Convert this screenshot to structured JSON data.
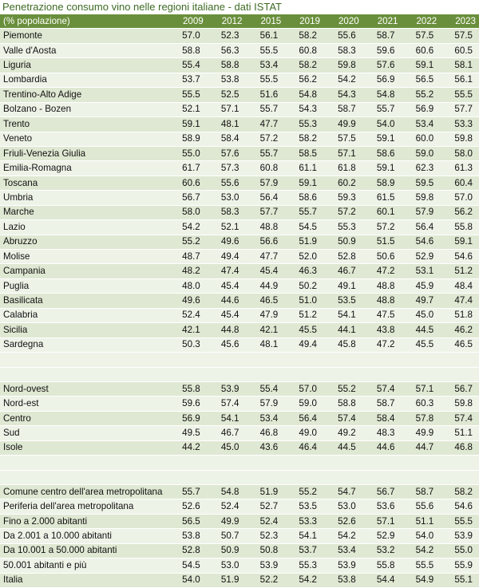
{
  "title": "Penetrazione consumo vino nelle regioni italiane - dati ISTAT",
  "table": {
    "unit_label": "(% popolazione)",
    "years": [
      "2009",
      "2012",
      "2015",
      "2019",
      "2020",
      "2021",
      "2022",
      "2023"
    ],
    "groups": [
      [
        {
          "label": "Piemonte",
          "values": [
            "57.0",
            "52.3",
            "56.1",
            "58.2",
            "55.6",
            "58.7",
            "57.5",
            "57.5"
          ]
        },
        {
          "label": "Valle d'Aosta",
          "values": [
            "58.8",
            "56.3",
            "55.5",
            "60.8",
            "58.3",
            "59.6",
            "60.6",
            "60.5"
          ]
        },
        {
          "label": "Liguria",
          "values": [
            "55.4",
            "58.8",
            "53.4",
            "58.2",
            "59.8",
            "57.6",
            "59.1",
            "58.1"
          ]
        },
        {
          "label": "Lombardia",
          "values": [
            "53.7",
            "53.8",
            "55.5",
            "56.2",
            "54.2",
            "56.9",
            "56.5",
            "56.1"
          ]
        },
        {
          "label": "Trentino-Alto Adige",
          "values": [
            "55.5",
            "52.5",
            "51.6",
            "54.8",
            "54.3",
            "54.8",
            "55.2",
            "55.5"
          ]
        },
        {
          "label": "Bolzano - Bozen",
          "values": [
            "52.1",
            "57.1",
            "55.7",
            "54.3",
            "58.7",
            "55.7",
            "56.9",
            "57.7"
          ]
        },
        {
          "label": "Trento",
          "values": [
            "59.1",
            "48.1",
            "47.7",
            "55.3",
            "49.9",
            "54.0",
            "53.4",
            "53.3"
          ]
        },
        {
          "label": "Veneto",
          "values": [
            "58.9",
            "58.4",
            "57.2",
            "58.2",
            "57.5",
            "59.1",
            "60.0",
            "59.8"
          ]
        },
        {
          "label": "Friuli-Venezia Giulia",
          "values": [
            "55.0",
            "57.6",
            "55.7",
            "58.5",
            "57.1",
            "58.6",
            "59.0",
            "58.0"
          ]
        },
        {
          "label": "Emilia-Romagna",
          "values": [
            "61.7",
            "57.3",
            "60.8",
            "61.1",
            "61.8",
            "59.1",
            "62.3",
            "61.3"
          ]
        },
        {
          "label": "Toscana",
          "values": [
            "60.6",
            "55.6",
            "57.9",
            "59.1",
            "60.2",
            "58.9",
            "59.5",
            "60.4"
          ]
        },
        {
          "label": "Umbria",
          "values": [
            "56.7",
            "53.0",
            "56.4",
            "58.6",
            "59.3",
            "61.5",
            "59.8",
            "57.0"
          ]
        },
        {
          "label": "Marche",
          "values": [
            "58.0",
            "58.3",
            "57.7",
            "55.7",
            "57.2",
            "60.1",
            "57.9",
            "56.2"
          ]
        },
        {
          "label": "Lazio",
          "values": [
            "54.2",
            "52.1",
            "48.8",
            "54.5",
            "55.3",
            "57.2",
            "56.4",
            "55.8"
          ]
        },
        {
          "label": "Abruzzo",
          "values": [
            "55.2",
            "49.6",
            "56.6",
            "51.9",
            "50.9",
            "51.5",
            "54.6",
            "59.1"
          ]
        },
        {
          "label": "Molise",
          "values": [
            "48.7",
            "49.4",
            "47.7",
            "52.0",
            "52.8",
            "50.6",
            "52.9",
            "54.6"
          ]
        },
        {
          "label": "Campania",
          "values": [
            "48.2",
            "47.4",
            "45.4",
            "46.3",
            "46.7",
            "47.2",
            "53.1",
            "51.2"
          ]
        },
        {
          "label": "Puglia",
          "values": [
            "48.0",
            "45.4",
            "44.9",
            "50.2",
            "49.1",
            "48.8",
            "45.9",
            "48.4"
          ]
        },
        {
          "label": "Basilicata",
          "values": [
            "49.6",
            "44.6",
            "46.5",
            "51.0",
            "53.5",
            "48.8",
            "49.7",
            "47.4"
          ]
        },
        {
          "label": "Calabria",
          "values": [
            "52.4",
            "45.4",
            "47.9",
            "51.2",
            "54.1",
            "47.5",
            "45.0",
            "51.8"
          ]
        },
        {
          "label": "Sicilia",
          "values": [
            "42.1",
            "44.8",
            "42.1",
            "45.5",
            "44.1",
            "43.8",
            "44.5",
            "46.2"
          ]
        },
        {
          "label": "Sardegna",
          "values": [
            "50.3",
            "45.6",
            "48.1",
            "49.4",
            "45.8",
            "47.2",
            "45.5",
            "46.5"
          ]
        }
      ],
      [
        {
          "label": "Nord-ovest",
          "values": [
            "55.8",
            "53.9",
            "55.4",
            "57.0",
            "55.2",
            "57.4",
            "57.1",
            "56.7"
          ]
        },
        {
          "label": "Nord-est",
          "values": [
            "59.6",
            "57.4",
            "57.9",
            "59.0",
            "58.8",
            "58.7",
            "60.3",
            "59.8"
          ]
        },
        {
          "label": "Centro",
          "values": [
            "56.9",
            "54.1",
            "53.4",
            "56.4",
            "57.4",
            "58.4",
            "57.8",
            "57.4"
          ]
        },
        {
          "label": "Sud",
          "values": [
            "49.5",
            "46.7",
            "46.8",
            "49.0",
            "49.2",
            "48.3",
            "49.9",
            "51.1"
          ]
        },
        {
          "label": "Isole",
          "values": [
            "44.2",
            "45.0",
            "43.6",
            "46.4",
            "44.5",
            "44.6",
            "44.7",
            "46.8"
          ]
        }
      ],
      [
        {
          "label": "Comune centro dell'area metropolitana",
          "values": [
            "55.7",
            "54.8",
            "51.9",
            "55.2",
            "54.7",
            "56.7",
            "58.7",
            "58.2"
          ]
        },
        {
          "label": "Periferia dell'area metropolitana",
          "values": [
            "52.6",
            "52.4",
            "52.7",
            "53.5",
            "53.0",
            "53.6",
            "55.6",
            "54.6"
          ]
        },
        {
          "label": "Fino a 2.000 abitanti",
          "values": [
            "56.5",
            "49.9",
            "52.4",
            "53.3",
            "52.6",
            "57.1",
            "51.1",
            "55.5"
          ]
        },
        {
          "label": "Da 2.001 a 10.000 abitanti",
          "values": [
            "53.8",
            "50.7",
            "52.3",
            "54.1",
            "54.2",
            "52.9",
            "54.0",
            "53.9"
          ]
        },
        {
          "label": "Da 10.001 a 50.000 abitanti",
          "values": [
            "52.8",
            "50.9",
            "50.8",
            "53.7",
            "53.4",
            "53.2",
            "54.2",
            "55.0"
          ]
        },
        {
          "label": "50.001 abitanti e più",
          "values": [
            "54.5",
            "53.0",
            "53.9",
            "55.3",
            "53.9",
            "55.8",
            "55.5",
            "55.9"
          ]
        },
        {
          "label": "Italia",
          "values": [
            "54.0",
            "51.9",
            "52.2",
            "54.2",
            "53.8",
            "54.4",
            "54.9",
            "55.1"
          ]
        }
      ]
    ]
  }
}
